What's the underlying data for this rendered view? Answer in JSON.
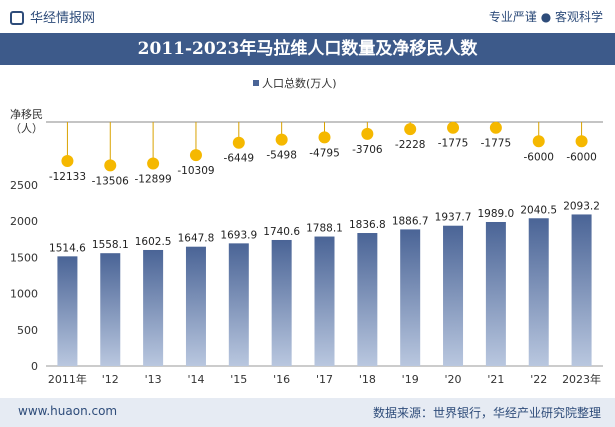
{
  "header": {
    "brand": "华经情报网",
    "tagline": "专业严谨 ● 客观科学"
  },
  "title": "2011-2023年马拉维人口数量及净移民人数",
  "footer": {
    "site": "www.huaon.com",
    "source": "数据来源：世界银行，华经产业研究院整理"
  },
  "colors": {
    "bar": "#4a6496",
    "bar_light": "#b9c7df",
    "dot": "#f5b800",
    "header": "#3d5a8a"
  },
  "chart_data": {
    "type": "bar",
    "categories": [
      "2011年",
      "'12",
      "'13",
      "'14",
      "'15",
      "'16",
      "'17",
      "'18",
      "'19",
      "'20",
      "'21",
      "'22",
      "2023年"
    ],
    "series": [
      {
        "name": "人口总数(万人)",
        "values": [
          1514.6,
          1558.1,
          1602.5,
          1647.8,
          1693.9,
          1740.6,
          1788.1,
          1836.8,
          1886.7,
          1937.7,
          1989.0,
          2040.5,
          2093.2
        ]
      },
      {
        "name": "净移民(人)",
        "values": [
          -12133,
          -13506,
          -12899,
          -10309,
          -6449,
          -5498,
          -4795,
          -3706,
          -2228,
          -1775,
          -1775,
          -6000,
          -6000
        ]
      }
    ],
    "value_labels": {
      "population": [
        "1514.6",
        "1558.1",
        "1602.5",
        "1647.8",
        "1693.9",
        "1740.6",
        "1788.1",
        "1836.8",
        "1886.7",
        "1937.7",
        "1989.0",
        "2040.5",
        "2093.2"
      ],
      "migration": [
        "-12133",
        "-13506",
        "-12899",
        "-10309",
        "-6449",
        "-5498",
        "-4795",
        "-3706",
        "-2228",
        "-1775",
        "-1775",
        "-6000",
        "-6000"
      ]
    },
    "legend": "人口总数(万人)",
    "y2_label": "净移民\n（人）",
    "yticks": [
      "0",
      "500",
      "1000",
      "1500",
      "2000",
      "2500"
    ],
    "ylim": [
      0,
      2500
    ],
    "legend_position": "top-center"
  }
}
